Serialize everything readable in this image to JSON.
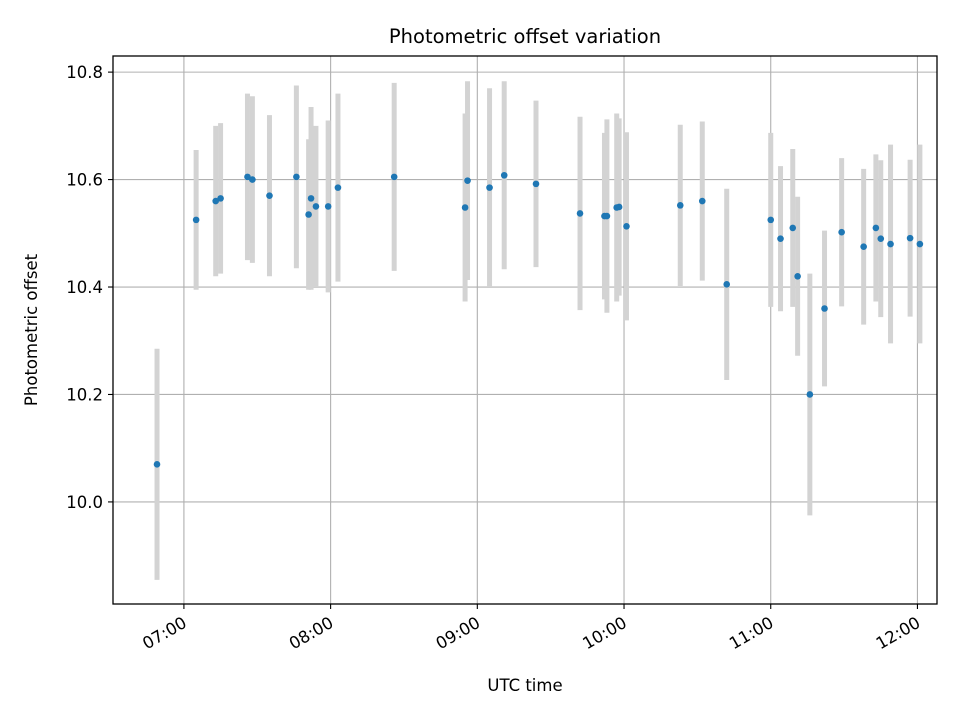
{
  "chart_data": {
    "type": "scatter",
    "title": "Photometric offset variation",
    "xlabel": "UTC time",
    "ylabel": "Photometric offset",
    "x_ticks": [
      "07:00",
      "08:00",
      "09:00",
      "10:00",
      "11:00",
      "12:00"
    ],
    "y_ticks": [
      "10.0",
      "10.2",
      "10.4",
      "10.6",
      "10.8"
    ],
    "xlim": [
      "06:31",
      "12:08"
    ],
    "ylim": [
      9.81,
      10.83
    ],
    "grid": true,
    "colors": {
      "marker": "#1f77b4",
      "errorbar": "#d3d3d3",
      "grid": "#b0b0b0"
    },
    "series": [
      {
        "x": [
          "06:49",
          "07:05",
          "07:13",
          "07:15",
          "07:26",
          "07:28",
          "07:35",
          "07:46",
          "07:51",
          "07:52",
          "07:54",
          "07:59",
          "08:03",
          "08:26",
          "08:55",
          "08:56",
          "09:05",
          "09:11",
          "09:24",
          "09:42",
          "09:52",
          "09:53",
          "09:57",
          "09:58",
          "10:01",
          "10:23",
          "10:32",
          "10:42",
          "11:00",
          "11:04",
          "11:09",
          "11:11",
          "11:16",
          "11:22",
          "11:29",
          "11:38",
          "11:43",
          "11:45",
          "11:49",
          "11:57",
          "12:01"
        ],
        "y": [
          10.07,
          10.525,
          10.56,
          10.565,
          10.605,
          10.6,
          10.57,
          10.605,
          10.535,
          10.565,
          10.55,
          10.55,
          10.585,
          10.605,
          10.548,
          10.598,
          10.585,
          10.608,
          10.592,
          10.537,
          10.532,
          10.532,
          10.548,
          10.549,
          10.513,
          10.552,
          10.56,
          10.405,
          10.525,
          10.49,
          10.51,
          10.42,
          10.2,
          10.36,
          10.502,
          10.475,
          10.51,
          10.49,
          10.48,
          10.491,
          10.48
        ],
        "err": [
          0.215,
          0.13,
          0.14,
          0.14,
          0.155,
          0.155,
          0.15,
          0.17,
          0.14,
          0.17,
          0.15,
          0.16,
          0.175,
          0.175,
          0.175,
          0.185,
          0.185,
          0.175,
          0.155,
          0.18,
          0.155,
          0.18,
          0.175,
          0.165,
          0.175,
          0.15,
          0.148,
          0.178,
          0.162,
          0.135,
          0.147,
          0.148,
          0.225,
          0.145,
          0.138,
          0.145,
          0.137,
          0.146,
          0.185,
          0.146,
          0.185
        ]
      }
    ]
  }
}
